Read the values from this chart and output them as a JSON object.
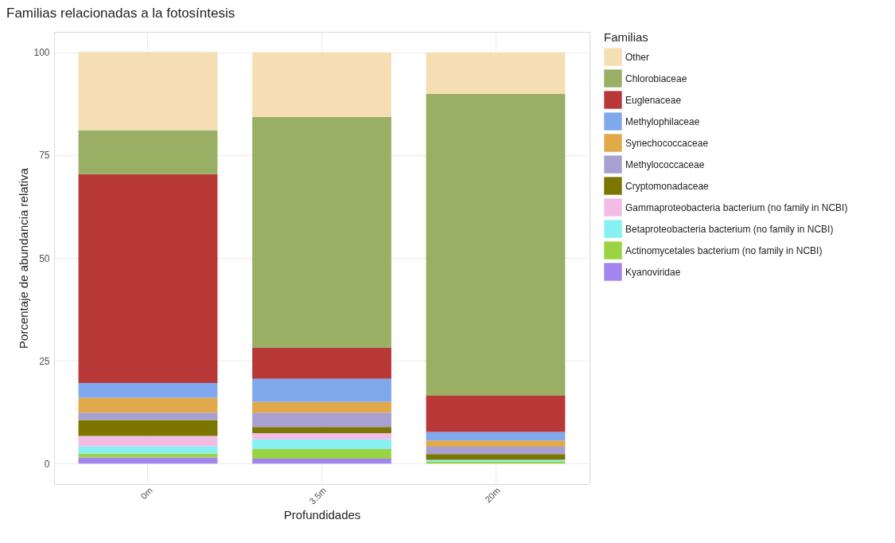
{
  "chart_data": {
    "type": "bar",
    "title": "Familias relacionadas a la fotosíntesis",
    "xlabel": "Profundidades",
    "ylabel": "Porcentaje de abundancia relativa",
    "legend_title": "Familias",
    "categories": [
      "0m",
      "3.5m",
      "20m"
    ],
    "stacked": true,
    "ylim": [
      -5,
      105
    ],
    "yticks": [
      0,
      25,
      50,
      75,
      100
    ],
    "grid": true,
    "legend": "right",
    "series": [
      {
        "name": "Kyanoviridae",
        "color": "#a285ee",
        "values": [
          1.5,
          1.2,
          0
        ]
      },
      {
        "name": "Actinomycetales bacterium (no family in NCBI)",
        "color": "#9bd442",
        "values": [
          0.9,
          2.3,
          0.4
        ]
      },
      {
        "name": "Betaproteobacteria bacterium (no family in NCBI)",
        "color": "#86f0f3",
        "values": [
          1.8,
          2.4,
          0.5
        ]
      },
      {
        "name": "Gammaproteobacteria bacterium (no family in NCBI)",
        "color": "#f3bce5",
        "values": [
          2.5,
          1.5,
          0
        ]
      },
      {
        "name": "Cryptomonadaceae",
        "color": "#7a7600",
        "values": [
          3.9,
          1.5,
          1.4
        ]
      },
      {
        "name": "Methylococcaceae",
        "color": "#a8a0d0",
        "values": [
          1.8,
          3.5,
          1.8
        ]
      },
      {
        "name": "Synechococcaceae",
        "color": "#e2a94a",
        "values": [
          3.6,
          2.6,
          1.5
        ]
      },
      {
        "name": "Methylophilaceae",
        "color": "#80a8ec",
        "values": [
          3.6,
          5.6,
          2.1
        ]
      },
      {
        "name": "Euglenaceae",
        "color": "#b83838",
        "values": [
          50.8,
          7.5,
          8.8
        ]
      },
      {
        "name": "Chlorobiaceae",
        "color": "#99af64",
        "values": [
          10.7,
          56.2,
          73.4
        ]
      },
      {
        "name": "Other",
        "color": "#f5deb3",
        "values": [
          19,
          15.7,
          10.1
        ]
      }
    ]
  }
}
